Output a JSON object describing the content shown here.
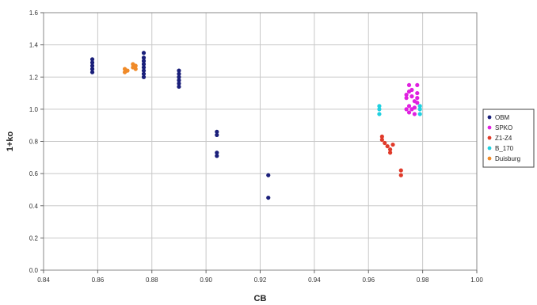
{
  "chart_data": {
    "type": "scatter",
    "title": "",
    "xlabel": "CB",
    "ylabel": "1+ko",
    "xlim": [
      0.84,
      1.0
    ],
    "ylim": [
      0.0,
      1.6
    ],
    "x_ticks": [
      "0.84",
      "0.86",
      "0.88",
      "0.90",
      "0.92",
      "0.94",
      "0.96",
      "0.98",
      "1.00"
    ],
    "y_ticks": [
      "0.0",
      "0.2",
      "0.4",
      "0.6",
      "0.8",
      "1.0",
      "1.2",
      "1.4",
      "1.6"
    ],
    "x_tick_values": [
      0.84,
      0.86,
      0.88,
      0.9,
      0.92,
      0.94,
      0.96,
      0.98,
      1.0
    ],
    "y_tick_values": [
      0.0,
      0.2,
      0.4,
      0.6,
      0.8,
      1.0,
      1.2,
      1.4,
      1.6
    ],
    "grid": true,
    "legend_position": "right",
    "series": [
      {
        "name": "OBM",
        "color": "#1a1f7a",
        "points": [
          [
            0.858,
            1.23
          ],
          [
            0.858,
            1.25
          ],
          [
            0.858,
            1.27
          ],
          [
            0.858,
            1.29
          ],
          [
            0.858,
            1.31
          ],
          [
            0.877,
            1.2
          ],
          [
            0.877,
            1.22
          ],
          [
            0.877,
            1.24
          ],
          [
            0.877,
            1.26
          ],
          [
            0.877,
            1.28
          ],
          [
            0.877,
            1.3
          ],
          [
            0.877,
            1.32
          ],
          [
            0.877,
            1.35
          ],
          [
            0.89,
            1.14
          ],
          [
            0.89,
            1.16
          ],
          [
            0.89,
            1.18
          ],
          [
            0.89,
            1.2
          ],
          [
            0.89,
            1.22
          ],
          [
            0.89,
            1.24
          ],
          [
            0.904,
            0.71
          ],
          [
            0.904,
            0.73
          ],
          [
            0.904,
            0.84
          ],
          [
            0.904,
            0.86
          ],
          [
            0.923,
            0.45
          ],
          [
            0.923,
            0.59
          ]
        ]
      },
      {
        "name": "SPKO",
        "color": "#e020e0",
        "points": [
          [
            0.974,
            1.0
          ],
          [
            0.974,
            1.07
          ],
          [
            0.974,
            1.09
          ],
          [
            0.975,
            0.98
          ],
          [
            0.975,
            1.02
          ],
          [
            0.975,
            1.11
          ],
          [
            0.975,
            1.15
          ],
          [
            0.976,
            1.0
          ],
          [
            0.976,
            1.08
          ],
          [
            0.976,
            1.12
          ],
          [
            0.977,
            0.97
          ],
          [
            0.977,
            1.01
          ],
          [
            0.977,
            1.05
          ],
          [
            0.978,
            1.04
          ],
          [
            0.978,
            1.07
          ],
          [
            0.978,
            1.1
          ],
          [
            0.978,
            1.15
          ]
        ]
      },
      {
        "name": "Z1-Z4",
        "color": "#e03a2a",
        "points": [
          [
            0.965,
            0.83
          ],
          [
            0.965,
            0.81
          ],
          [
            0.966,
            0.79
          ],
          [
            0.967,
            0.77
          ],
          [
            0.968,
            0.75
          ],
          [
            0.968,
            0.73
          ],
          [
            0.969,
            0.78
          ],
          [
            0.972,
            0.59
          ],
          [
            0.972,
            0.62
          ]
        ]
      },
      {
        "name": "B_170",
        "color": "#20d0e0",
        "points": [
          [
            0.964,
            0.97
          ],
          [
            0.964,
            1.0
          ],
          [
            0.964,
            1.02
          ],
          [
            0.979,
            0.97
          ],
          [
            0.979,
            1.0
          ],
          [
            0.979,
            1.02
          ]
        ]
      },
      {
        "name": "Duisburg",
        "color": "#f08a28",
        "points": [
          [
            0.87,
            1.23
          ],
          [
            0.87,
            1.25
          ],
          [
            0.871,
            1.24
          ],
          [
            0.873,
            1.26
          ],
          [
            0.873,
            1.28
          ],
          [
            0.874,
            1.25
          ],
          [
            0.874,
            1.27
          ]
        ]
      }
    ]
  }
}
